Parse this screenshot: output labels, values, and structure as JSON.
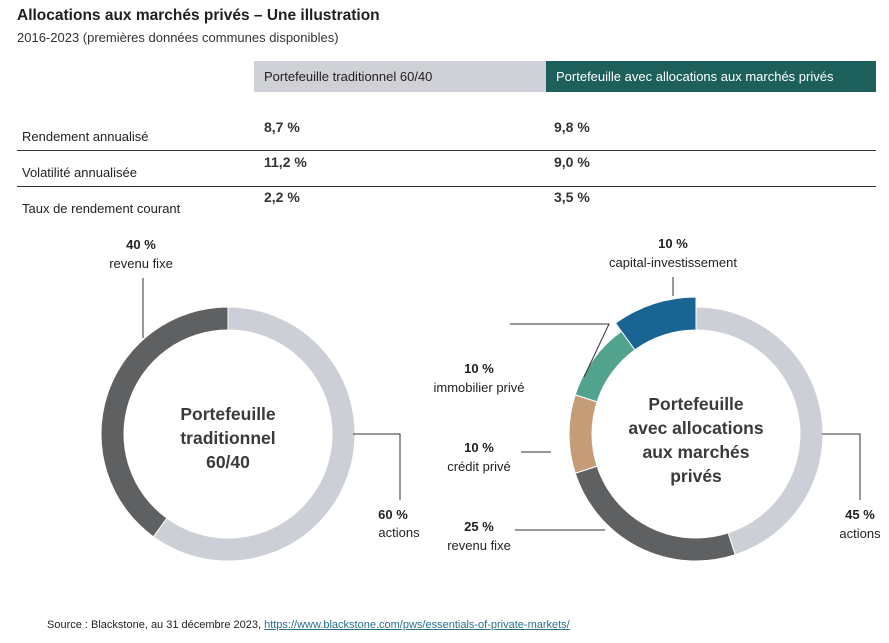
{
  "title": "Allocations aux marchés privés – Une illustration",
  "subtitle": "2016-2023 (premières données communes disponibles)",
  "table": {
    "columns": [
      "Portefeuille traditionnel 60/40",
      "Portefeuille avec allocations aux marchés privés"
    ],
    "rows": [
      {
        "label": "Rendement annualisé",
        "v1": "8,7 %",
        "v2": "9,8 %"
      },
      {
        "label": "Volatilité annualisée",
        "v1": "11,2 %",
        "v2": "9,0 %"
      },
      {
        "label": "Taux de rendement courant",
        "v1": "2,2 %",
        "v2": "3,5 %"
      }
    ]
  },
  "chart_data": [
    {
      "type": "pie",
      "center_label": [
        "Portefeuille",
        "traditionnel",
        "60/40"
      ],
      "slices": [
        {
          "label": "actions",
          "pct_text": "60 %",
          "value": 60,
          "color": "#cccfd5"
        },
        {
          "label": "revenu fixe",
          "pct_text": "40 %",
          "value": 40,
          "color": "#5f6062"
        }
      ]
    },
    {
      "type": "pie",
      "center_label": [
        "Portefeuille",
        "avec allocations",
        "aux marchés",
        "privés"
      ],
      "slices": [
        {
          "label": "actions",
          "pct_text": "45 %",
          "value": 45,
          "color": "#cccfd5"
        },
        {
          "label": "revenu fixe",
          "pct_text": "25 %",
          "value": 25,
          "color": "#5f6062"
        },
        {
          "label": "crédit privé",
          "pct_text": "10 %",
          "value": 10,
          "color": "#c59c78"
        },
        {
          "label": "immobilier privé",
          "pct_text": "10 %",
          "value": 10,
          "color": "#52a38e"
        },
        {
          "label": "capital-investissement",
          "pct_text": "10 %",
          "value": 10,
          "color": "#1a6494",
          "emphasized": true
        }
      ]
    }
  ],
  "source": {
    "prefix": "Source : Blackstone, au 31 décembre 2023, ",
    "link": "https://www.blackstone.com/pws/essentials-of-private-markets/"
  }
}
